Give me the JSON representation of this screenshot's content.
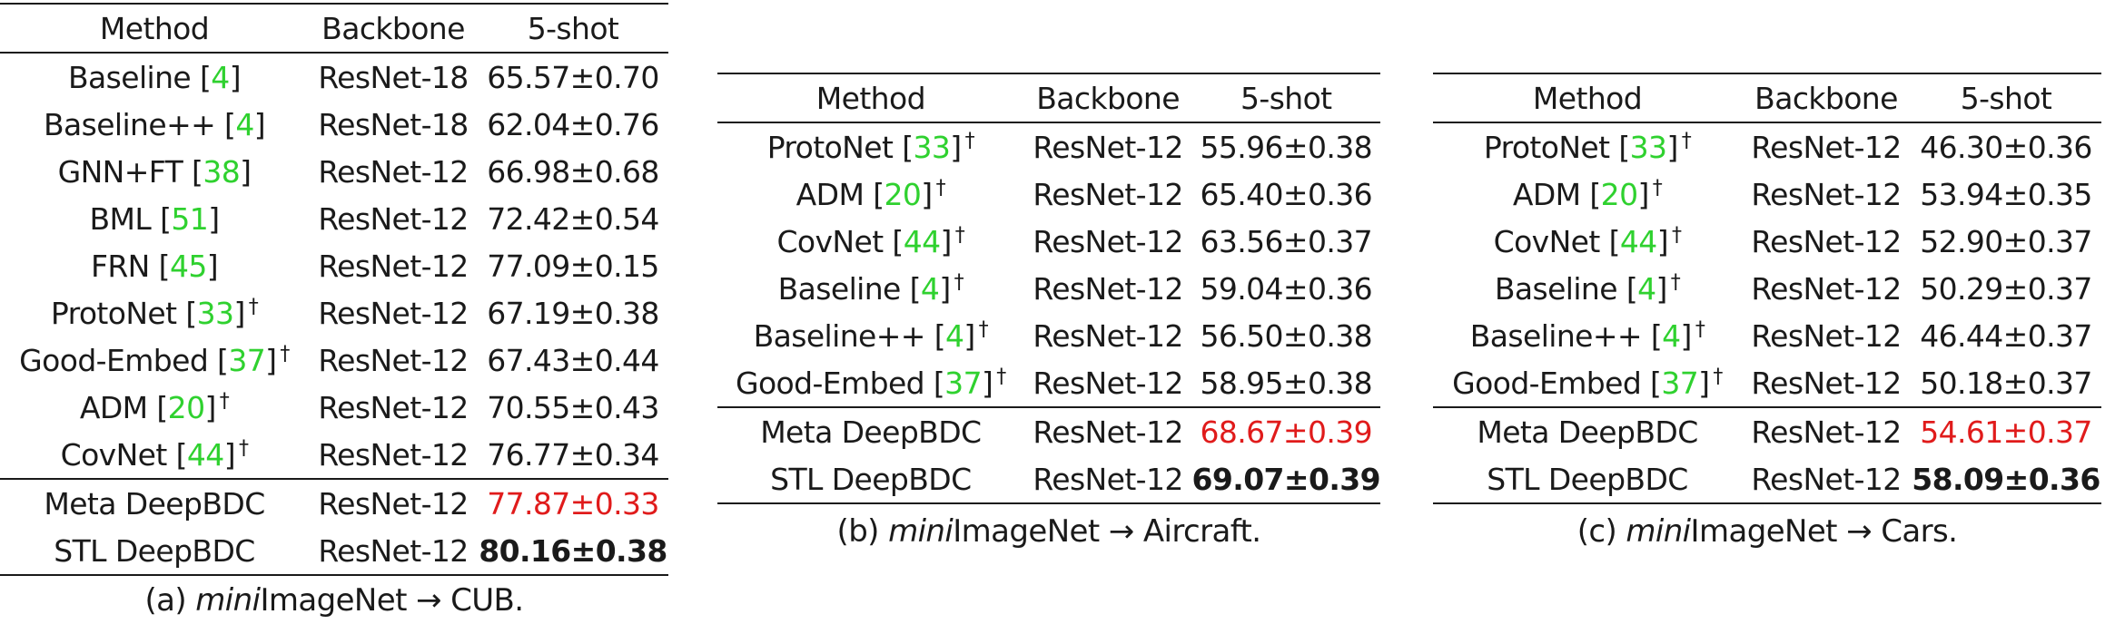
{
  "headers": {
    "method": "Method",
    "backbone": "Backbone",
    "shot": "5-shot"
  },
  "panels": [
    {
      "caption": {
        "label": "(a) ",
        "italic": "mini",
        "rest": "ImageNet → CUB."
      },
      "rows": [
        {
          "method": "Baseline [",
          "ref": "4",
          "close": "]",
          "dagger": "",
          "backbone": "ResNet-18",
          "score": "65.57±0.70",
          "style": ""
        },
        {
          "method": "Baseline++ [",
          "ref": "4",
          "close": "]",
          "dagger": "",
          "backbone": "ResNet-18",
          "score": "62.04±0.76",
          "style": ""
        },
        {
          "method": "GNN+FT [",
          "ref": "38",
          "close": "]",
          "dagger": "",
          "backbone": "ResNet-12",
          "score": "66.98±0.68",
          "style": ""
        },
        {
          "method": "BML [",
          "ref": "51",
          "close": "]",
          "dagger": "",
          "backbone": "ResNet-12",
          "score": "72.42±0.54",
          "style": ""
        },
        {
          "method": "FRN [",
          "ref": "45",
          "close": "]",
          "dagger": "",
          "backbone": "ResNet-12",
          "score": "77.09±0.15",
          "style": ""
        },
        {
          "method": "ProtoNet [",
          "ref": "33",
          "close": "]",
          "dagger": "†",
          "backbone": "ResNet-12",
          "score": "67.19±0.38",
          "style": ""
        },
        {
          "method": "Good-Embed [",
          "ref": "37",
          "close": "]",
          "dagger": "†",
          "backbone": "ResNet-12",
          "score": "67.43±0.44",
          "style": ""
        },
        {
          "method": "ADM [",
          "ref": "20",
          "close": "]",
          "dagger": "†",
          "backbone": "ResNet-12",
          "score": "70.55±0.43",
          "style": ""
        },
        {
          "method": "CovNet [",
          "ref": "44",
          "close": "]",
          "dagger": "†",
          "backbone": "ResNet-12",
          "score": "76.77±0.34",
          "style": ""
        },
        {
          "method": "Meta DeepBDC",
          "ref": "",
          "close": "",
          "dagger": "",
          "backbone": "ResNet-12",
          "score": "77.87±0.33",
          "style": "red"
        },
        {
          "method": "STL DeepBDC",
          "ref": "",
          "close": "",
          "dagger": "",
          "backbone": "ResNet-12",
          "score": "80.16±0.38",
          "style": "best"
        }
      ]
    },
    {
      "caption": {
        "label": "(b)  ",
        "italic": "mini",
        "rest": "ImageNet → Aircraft."
      },
      "rows": [
        {
          "method": "ProtoNet [",
          "ref": "33",
          "close": "]",
          "dagger": "†",
          "backbone": "ResNet-12",
          "score": "55.96±0.38",
          "style": ""
        },
        {
          "method": "ADM [",
          "ref": "20",
          "close": "]",
          "dagger": "†",
          "backbone": "ResNet-12",
          "score": "65.40±0.36",
          "style": ""
        },
        {
          "method": "CovNet [",
          "ref": "44",
          "close": "]",
          "dagger": "†",
          "backbone": "ResNet-12",
          "score": "63.56±0.37",
          "style": ""
        },
        {
          "method": "Baseline [",
          "ref": "4",
          "close": "]",
          "dagger": "†",
          "backbone": "ResNet-12",
          "score": "59.04±0.36",
          "style": ""
        },
        {
          "method": "Baseline++ [",
          "ref": "4",
          "close": "]",
          "dagger": "†",
          "backbone": "ResNet-12",
          "score": "56.50±0.38",
          "style": ""
        },
        {
          "method": "Good-Embed [",
          "ref": "37",
          "close": "]",
          "dagger": "†",
          "backbone": "ResNet-12",
          "score": "58.95±0.38",
          "style": ""
        },
        {
          "method": "Meta DeepBDC",
          "ref": "",
          "close": "",
          "dagger": "",
          "backbone": "ResNet-12",
          "score": "68.67±0.39",
          "style": "red"
        },
        {
          "method": "STL DeepBDC",
          "ref": "",
          "close": "",
          "dagger": "",
          "backbone": "ResNet-12",
          "score": "69.07±0.39",
          "style": "best"
        }
      ]
    },
    {
      "caption": {
        "label": "(c) ",
        "italic": "mini",
        "rest": "ImageNet → Cars."
      },
      "rows": [
        {
          "method": "ProtoNet [",
          "ref": "33",
          "close": "]",
          "dagger": "†",
          "backbone": "ResNet-12",
          "score": "46.30±0.36",
          "style": ""
        },
        {
          "method": "ADM [",
          "ref": "20",
          "close": "]",
          "dagger": "†",
          "backbone": "ResNet-12",
          "score": "53.94±0.35",
          "style": ""
        },
        {
          "method": "CovNet [",
          "ref": "44",
          "close": "]",
          "dagger": "†",
          "backbone": "ResNet-12",
          "score": "52.90±0.37",
          "style": ""
        },
        {
          "method": "Baseline [",
          "ref": "4",
          "close": "]",
          "dagger": "†",
          "backbone": "ResNet-12",
          "score": "50.29±0.37",
          "style": ""
        },
        {
          "method": "Baseline++ [",
          "ref": "4",
          "close": "]",
          "dagger": "†",
          "backbone": "ResNet-12",
          "score": "46.44±0.37",
          "style": ""
        },
        {
          "method": "Good-Embed [",
          "ref": "37",
          "close": "]",
          "dagger": "†",
          "backbone": "ResNet-12",
          "score": "50.18±0.37",
          "style": ""
        },
        {
          "method": "Meta DeepBDC",
          "ref": "",
          "close": "",
          "dagger": "",
          "backbone": "ResNet-12",
          "score": "54.61±0.37",
          "style": "red"
        },
        {
          "method": "STL DeepBDC",
          "ref": "",
          "close": "",
          "dagger": "",
          "backbone": "ResNet-12",
          "score": "58.09±0.36",
          "style": "best"
        }
      ]
    }
  ]
}
